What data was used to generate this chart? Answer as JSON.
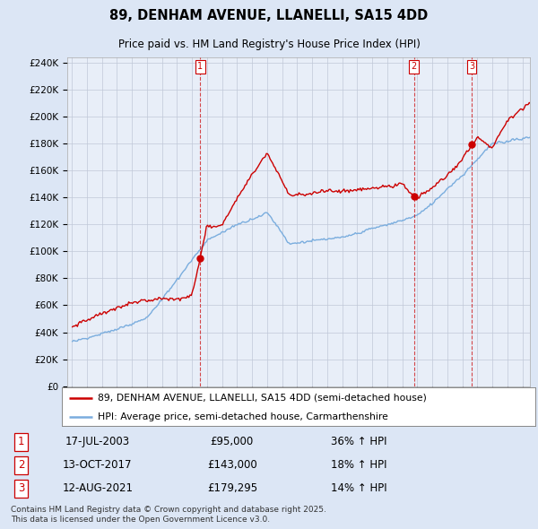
{
  "title": "89, DENHAM AVENUE, LLANELLI, SA15 4DD",
  "subtitle": "Price paid vs. HM Land Registry's House Price Index (HPI)",
  "legend_red": "89, DENHAM AVENUE, LLANELLI, SA15 4DD (semi-detached house)",
  "legend_blue": "HPI: Average price, semi-detached house, Carmarthenshire",
  "footer": "Contains HM Land Registry data © Crown copyright and database right 2025.\nThis data is licensed under the Open Government Licence v3.0.",
  "transactions": [
    {
      "num": 1,
      "date": "17-JUL-2003",
      "price": "£95,000",
      "hpi": "36% ↑ HPI",
      "year": 2003.54,
      "price_val": 95000
    },
    {
      "num": 2,
      "date": "13-OCT-2017",
      "price": "£143,000",
      "hpi": "18% ↑ HPI",
      "year": 2017.79,
      "price_val": 143000
    },
    {
      "num": 3,
      "date": "12-AUG-2021",
      "price": "£179,295",
      "hpi": "14% ↑ HPI",
      "year": 2021.62,
      "price_val": 179295
    }
  ],
  "ylim": [
    0,
    244000
  ],
  "yticks": [
    0,
    20000,
    40000,
    60000,
    80000,
    100000,
    120000,
    140000,
    160000,
    180000,
    200000,
    220000,
    240000
  ],
  "xlim_left": 1994.7,
  "xlim_right": 2025.5,
  "background_color": "#dce6f5",
  "plot_background": "#e8eef8",
  "red_color": "#cc0000",
  "blue_color": "#7aadde",
  "dashed_color": "#cc0000",
  "grid_color": "#c0c8d8"
}
